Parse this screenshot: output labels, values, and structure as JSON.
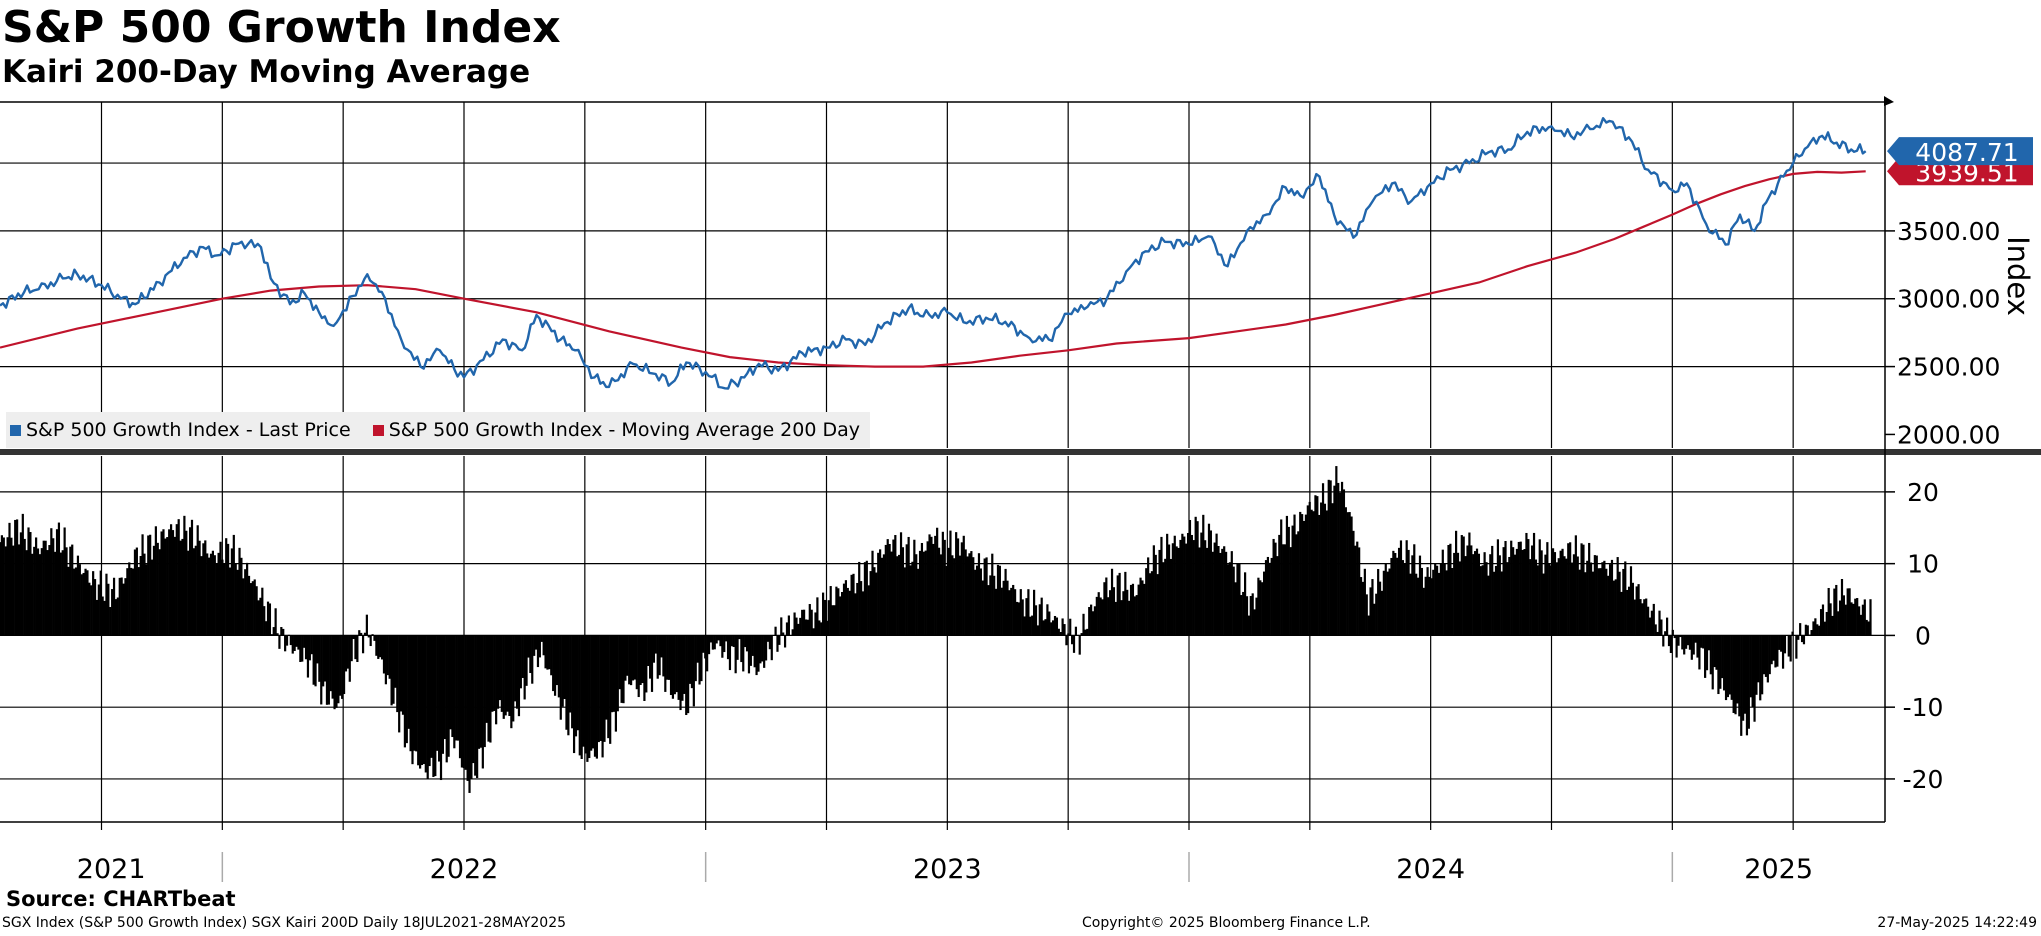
{
  "header": {
    "title": "S&P 500 Growth Index",
    "subtitle": "Kairi 200-Day Moving Average"
  },
  "footer": {
    "source": "Source:  CHARTbeat",
    "left": "SGX Index (S&P 500 Growth Index) SGX Kairi 200D  Daily 18JUL2021-28MAY2025",
    "middle": "Copyright© 2025 Bloomberg Finance L.P.",
    "right": "27-May-2025 14:22:49"
  },
  "colors": {
    "price": "#2166ac",
    "ma": "#c0142c",
    "bars": "#000000",
    "legend_bg": "#eeeeee"
  },
  "chart_data": [
    {
      "type": "line",
      "title": "S&P 500 Growth Index",
      "ylabel": "Index",
      "ylim": [
        1900,
        4450
      ],
      "yticks": [
        2000,
        2500,
        3000,
        3500
      ],
      "ytick_labels": [
        "2000.00",
        "2500.00",
        "3000.00",
        "3500.00"
      ],
      "xlim": [
        2021.54,
        2025.44
      ],
      "year_labels": [
        {
          "label": "2021",
          "pos": 2021.77
        },
        {
          "label": "2022",
          "pos": 2022.5
        },
        {
          "label": "2023",
          "pos": 2023.5
        },
        {
          "label": "2024",
          "pos": 2024.5
        },
        {
          "label": "2025",
          "pos": 2025.22
        }
      ],
      "legend": [
        "S&P 500 Growth Index - Last Price",
        "S&P 500 Growth Index - Moving Average 200 Day"
      ],
      "last_values": [
        {
          "series": "S&P 500 Growth Index - Last Price",
          "label": "4087.71",
          "value": 4087.71
        },
        {
          "series": "S&P 500 Growth Index - Moving Average 200 Day",
          "label": "3939.51",
          "value": 3939.51
        }
      ],
      "series": [
        {
          "name": "S&P 500 Growth Index - Last Price",
          "x": [
            2021.54,
            2021.59,
            2021.62,
            2021.67,
            2021.7,
            2021.75,
            2021.79,
            2021.82,
            2021.87,
            2021.92,
            2021.96,
            2021.99,
            2022.04,
            2022.08,
            2022.1,
            2022.14,
            2022.17,
            2022.2,
            2022.23,
            2022.27,
            2022.3,
            2022.33,
            2022.37,
            2022.41,
            2022.45,
            2022.48,
            2022.5,
            2022.54,
            2022.58,
            2022.62,
            2022.65,
            2022.7,
            2022.73,
            2022.77,
            2022.8,
            2022.85,
            2022.89,
            2022.93,
            2022.96,
            2023.0,
            2023.04,
            2023.08,
            2023.11,
            2023.15,
            2023.2,
            2023.25,
            2023.29,
            2023.33,
            2023.37,
            2023.42,
            2023.45,
            2023.5,
            2023.54,
            2023.58,
            2023.62,
            2023.67,
            2023.71,
            2023.75,
            2023.79,
            2023.83,
            2023.87,
            2023.91,
            2023.95,
            2024.0,
            2024.04,
            2024.08,
            2024.12,
            2024.16,
            2024.2,
            2024.23,
            2024.27,
            2024.3,
            2024.34,
            2024.38,
            2024.42,
            2024.46,
            2024.5,
            2024.54,
            2024.58,
            2024.62,
            2024.66,
            2024.7,
            2024.75,
            2024.79,
            2024.83,
            2024.87,
            2024.91,
            2024.95,
            2025.0,
            2025.03,
            2025.07,
            2025.11,
            2025.14,
            2025.17,
            2025.2,
            2025.23,
            2025.25,
            2025.28,
            2025.31,
            2025.34,
            2025.37,
            2025.4
          ],
          "values": [
            2950,
            3050,
            3070,
            3150,
            3180,
            3100,
            3000,
            2960,
            3120,
            3300,
            3380,
            3320,
            3420,
            3380,
            3150,
            2960,
            3040,
            2900,
            2800,
            3020,
            3180,
            3050,
            2700,
            2500,
            2620,
            2480,
            2420,
            2550,
            2700,
            2620,
            2880,
            2700,
            2620,
            2420,
            2350,
            2520,
            2450,
            2380,
            2530,
            2460,
            2340,
            2420,
            2520,
            2470,
            2600,
            2640,
            2700,
            2660,
            2820,
            2930,
            2870,
            2900,
            2820,
            2860,
            2830,
            2710,
            2700,
            2890,
            2940,
            3000,
            3200,
            3350,
            3420,
            3400,
            3460,
            3240,
            3500,
            3620,
            3820,
            3760,
            3900,
            3620,
            3450,
            3720,
            3850,
            3720,
            3850,
            3950,
            4000,
            4080,
            4100,
            4230,
            4270,
            4200,
            4250,
            4310,
            4190,
            3950,
            3800,
            3850,
            3550,
            3400,
            3620,
            3500,
            3750,
            3900,
            4000,
            4120,
            4200,
            4150,
            4100,
            4087.71
          ]
        },
        {
          "name": "S&P 500 Growth Index - Moving Average 200 Day",
          "x": [
            2021.54,
            2021.7,
            2021.85,
            2022.0,
            2022.1,
            2022.2,
            2022.3,
            2022.4,
            2022.5,
            2022.65,
            2022.8,
            2022.95,
            2023.05,
            2023.15,
            2023.25,
            2023.35,
            2023.45,
            2023.55,
            2023.65,
            2023.75,
            2023.85,
            2024.0,
            2024.1,
            2024.2,
            2024.3,
            2024.4,
            2024.5,
            2024.6,
            2024.7,
            2024.8,
            2024.88,
            2024.94,
            2025.0,
            2025.05,
            2025.1,
            2025.15,
            2025.2,
            2025.25,
            2025.3,
            2025.35,
            2025.4
          ],
          "values": [
            2640,
            2780,
            2890,
            3000,
            3060,
            3090,
            3100,
            3070,
            3000,
            2900,
            2760,
            2640,
            2570,
            2530,
            2510,
            2500,
            2500,
            2530,
            2580,
            2620,
            2670,
            2710,
            2760,
            2810,
            2880,
            2960,
            3040,
            3120,
            3240,
            3340,
            3440,
            3530,
            3620,
            3700,
            3770,
            3830,
            3880,
            3920,
            3935,
            3930,
            3939.51
          ]
        }
      ]
    },
    {
      "type": "bar",
      "title": "Kairi 200-Day Moving Average",
      "ylim": [
        -26,
        25
      ],
      "yticks": [
        20,
        10,
        0,
        -10,
        -20
      ],
      "ytick_labels": [
        "20",
        "10",
        "0",
        "-10",
        "-20"
      ],
      "xlim": [
        2021.54,
        2025.44
      ],
      "series": [
        {
          "name": "Kairi 200D",
          "x": [
            2021.54,
            2021.58,
            2021.62,
            2021.66,
            2021.7,
            2021.74,
            2021.78,
            2021.82,
            2021.86,
            2021.9,
            2021.94,
            2021.98,
            2022.02,
            2022.06,
            2022.09,
            2022.12,
            2022.15,
            2022.18,
            2022.21,
            2022.24,
            2022.27,
            2022.3,
            2022.33,
            2022.36,
            2022.39,
            2022.42,
            2022.45,
            2022.48,
            2022.51,
            2022.54,
            2022.57,
            2022.6,
            2022.63,
            2022.66,
            2022.69,
            2022.72,
            2022.75,
            2022.78,
            2022.81,
            2022.84,
            2022.87,
            2022.9,
            2022.93,
            2022.96,
            2022.99,
            2023.02,
            2023.05,
            2023.08,
            2023.11,
            2023.14,
            2023.17,
            2023.2,
            2023.23,
            2023.26,
            2023.29,
            2023.32,
            2023.35,
            2023.38,
            2023.41,
            2023.44,
            2023.47,
            2023.5,
            2023.53,
            2023.56,
            2023.59,
            2023.62,
            2023.65,
            2023.68,
            2023.71,
            2023.74,
            2023.77,
            2023.8,
            2023.83,
            2023.86,
            2023.89,
            2023.92,
            2023.95,
            2023.98,
            2024.01,
            2024.04,
            2024.07,
            2024.1,
            2024.13,
            2024.16,
            2024.19,
            2024.22,
            2024.25,
            2024.28,
            2024.31,
            2024.34,
            2024.37,
            2024.4,
            2024.43,
            2024.46,
            2024.49,
            2024.52,
            2024.55,
            2024.58,
            2024.61,
            2024.64,
            2024.67,
            2024.7,
            2024.73,
            2024.76,
            2024.79,
            2024.82,
            2024.85,
            2024.88,
            2024.91,
            2024.94,
            2024.97,
            2025.0,
            2025.03,
            2025.06,
            2025.09,
            2025.12,
            2025.15,
            2025.18,
            2025.21,
            2025.24,
            2025.27,
            2025.3,
            2025.33,
            2025.36,
            2025.39,
            2025.41
          ],
          "values": [
            13,
            15,
            12,
            14,
            10,
            7,
            6,
            11,
            13,
            15,
            14,
            11,
            12,
            8,
            4,
            0,
            -2,
            -4,
            -8,
            -10,
            -3,
            1,
            -4,
            -10,
            -16,
            -19,
            -18,
            -14,
            -21,
            -16,
            -10,
            -12,
            -6,
            -2,
            -8,
            -13,
            -17,
            -16,
            -12,
            -6,
            -8,
            -4,
            -8,
            -10,
            -5,
            -1,
            -3,
            -3,
            -5,
            -1,
            1,
            3,
            3,
            5,
            7,
            8,
            10,
            13,
            12,
            11,
            14,
            12,
            13,
            10,
            9,
            8,
            5,
            4,
            3,
            1,
            -1,
            4,
            7,
            7,
            6,
            10,
            12,
            13,
            15,
            14,
            12,
            9,
            4,
            10,
            14,
            15,
            18,
            19,
            22,
            15,
            5,
            8,
            12,
            11,
            8,
            10,
            12,
            13,
            10,
            11,
            12,
            13,
            11,
            11,
            12,
            11,
            10,
            9,
            8,
            5,
            2,
            -1,
            -2,
            -3,
            -6,
            -9,
            -13,
            -8,
            -4,
            -2,
            0,
            2,
            5,
            6,
            4,
            3
          ]
        }
      ]
    }
  ]
}
